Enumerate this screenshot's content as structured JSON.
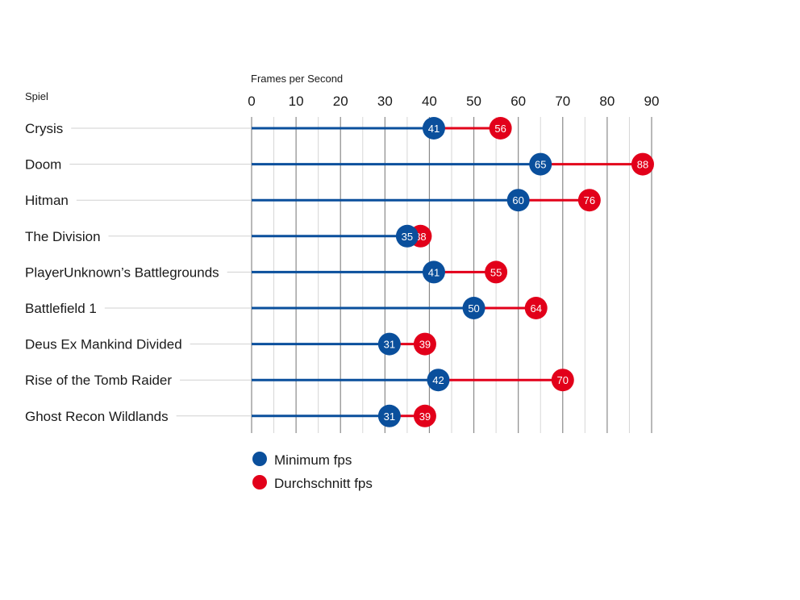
{
  "chart_data": {
    "type": "dot-range",
    "xlabel": "Frames per Second",
    "ylabel": "Spiel",
    "xlim": [
      0,
      90
    ],
    "xticks": [
      0,
      10,
      20,
      30,
      40,
      50,
      60,
      70,
      80,
      90
    ],
    "grid": "vertical",
    "categories": [
      "Crysis",
      "Doom",
      "Hitman",
      "The Division",
      "PlayerUnknown’s Battlegrounds",
      "Battlefield 1",
      "Deus Ex Mankind Divided",
      "Rise of the Tomb Raider",
      "Ghost Recon Wildlands"
    ],
    "series": [
      {
        "name": "Minimum fps",
        "color": "#0a4f9c",
        "values": [
          41,
          65,
          60,
          35,
          41,
          50,
          31,
          42,
          31
        ]
      },
      {
        "name": "Durchschnitt fps",
        "color": "#e2001a",
        "values": [
          56,
          88,
          76,
          38,
          55,
          64,
          39,
          70,
          39
        ]
      }
    ],
    "legend_position": "bottom-left"
  }
}
